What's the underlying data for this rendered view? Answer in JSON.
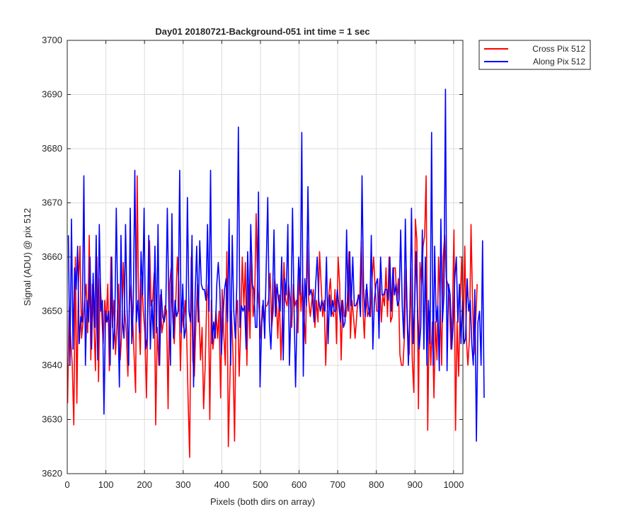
{
  "chart_data": {
    "type": "line",
    "title": "Day01 20180721-Background-051 int time = 1 sec",
    "xlabel": "Pixels (both dirs on array)",
    "ylabel": "Signal (ADU) @ pix 512",
    "xlim": [
      0,
      1024
    ],
    "ylim": [
      3620,
      3700
    ],
    "x_ticks": [
      0,
      100,
      200,
      300,
      400,
      500,
      600,
      700,
      800,
      900,
      1000
    ],
    "y_ticks": [
      3620,
      3630,
      3640,
      3650,
      3660,
      3670,
      3680,
      3690,
      3700
    ],
    "grid": true,
    "legend_position": "outside-top-right",
    "series": [
      {
        "name": "Cross Pix 512",
        "color": "#ff0000",
        "x_start": 1,
        "x_step": 4,
        "values": [
          3633,
          3651,
          3645,
          3640,
          3629,
          3660,
          3633,
          3655,
          3662,
          3645,
          3648,
          3652,
          3655,
          3646,
          3664,
          3641,
          3655,
          3648,
          3639,
          3660,
          3637,
          3656,
          3650,
          3644,
          3652,
          3648,
          3655,
          3639,
          3660,
          3647,
          3652,
          3642,
          3648,
          3655,
          3641,
          3646,
          3659,
          3650,
          3646,
          3638,
          3651,
          3655,
          3649,
          3642,
          3635,
          3675,
          3649,
          3642,
          3656,
          3650,
          3646,
          3634,
          3651,
          3663,
          3651,
          3652,
          3657,
          3629,
          3647,
          3640,
          3653,
          3646,
          3648,
          3651,
          3650,
          3632,
          3655,
          3658,
          3649,
          3644,
          3652,
          3660,
          3655,
          3639,
          3650,
          3647,
          3652,
          3646,
          3633,
          3623,
          3660,
          3641,
          3638,
          3648,
          3655,
          3650,
          3641,
          3647,
          3632,
          3640,
          3652,
          3655,
          3630,
          3652,
          3643,
          3646,
          3650,
          3645,
          3650,
          3634,
          3654,
          3646,
          3640,
          3661,
          3625,
          3637,
          3650,
          3642,
          3626,
          3649,
          3652,
          3638,
          3647,
          3660,
          3651,
          3659,
          3640,
          3655,
          3645,
          3661,
          3649,
          3652,
          3668,
          3654,
          3650,
          3645,
          3651,
          3648,
          3651,
          3651,
          3652,
          3657,
          3647,
          3650,
          3656,
          3653,
          3645,
          3653,
          3641,
          3649,
          3659,
          3652,
          3651,
          3655,
          3652,
          3647,
          3655,
          3651,
          3652,
          3646,
          3658,
          3650,
          3656,
          3649,
          3644,
          3663,
          3652,
          3649,
          3652,
          3654,
          3647,
          3652,
          3648,
          3661,
          3655,
          3649,
          3652,
          3640,
          3650,
          3653,
          3656,
          3650,
          3649,
          3654,
          3644,
          3660,
          3655,
          3641,
          3652,
          3649,
          3649,
          3652,
          3661,
          3645,
          3652,
          3649,
          3645,
          3649,
          3653,
          3652,
          3663,
          3651,
          3645,
          3654,
          3649,
          3650,
          3649,
          3656,
          3660,
          3654,
          3650,
          3650,
          3656,
          3648,
          3653,
          3651,
          3658,
          3649,
          3660,
          3648,
          3649,
          3658,
          3658,
          3652,
          3656,
          3642,
          3640,
          3640,
          3646,
          3658,
          3647,
          3642,
          3658,
          3641,
          3635,
          3667,
          3663,
          3632,
          3659,
          3655,
          3662,
          3664,
          3675,
          3628,
          3650,
          3640,
          3648,
          3634,
          3648,
          3641,
          3660,
          3652,
          3640,
          3660,
          3664,
          3656,
          3655,
          3652,
          3643,
          3650,
          3665,
          3628,
          3648,
          3638,
          3652,
          3660,
          3645,
          3662,
          3645,
          3640,
          3645,
          3666,
          3652,
          3642,
          3648,
          3655
        ]
      },
      {
        "name": "Along Pix 512",
        "color": "#0000ff",
        "x_start": 3,
        "x_step": 4,
        "values": [
          3664,
          3640,
          3667,
          3643,
          3658,
          3654,
          3662,
          3644,
          3649,
          3648,
          3675,
          3640,
          3652,
          3648,
          3660,
          3643,
          3657,
          3647,
          3664,
          3641,
          3666,
          3650,
          3652,
          3631,
          3650,
          3648,
          3650,
          3640,
          3660,
          3643,
          3647,
          3669,
          3650,
          3636,
          3664,
          3648,
          3645,
          3666,
          3650,
          3640,
          3669,
          3644,
          3651,
          3676,
          3648,
          3652,
          3646,
          3661,
          3653,
          3669,
          3643,
          3645,
          3664,
          3643,
          3652,
          3645,
          3662,
          3646,
          3666,
          3640,
          3654,
          3649,
          3648,
          3650,
          3669,
          3651,
          3640,
          3668,
          3645,
          3652,
          3649,
          3650,
          3676,
          3646,
          3655,
          3645,
          3647,
          3671,
          3650,
          3648,
          3664,
          3636,
          3653,
          3662,
          3648,
          3663,
          3655,
          3654,
          3654,
          3652,
          3666,
          3650,
          3676,
          3644,
          3648,
          3645,
          3655,
          3659,
          3654,
          3642,
          3649,
          3654,
          3656,
          3648,
          3667,
          3640,
          3664,
          3650,
          3645,
          3655,
          3684,
          3647,
          3651,
          3650,
          3651,
          3643,
          3661,
          3650,
          3666,
          3655,
          3654,
          3647,
          3647,
          3672,
          3636,
          3647,
          3652,
          3645,
          3658,
          3671,
          3648,
          3643,
          3651,
          3665,
          3649,
          3655,
          3652,
          3650,
          3660,
          3641,
          3656,
          3653,
          3666,
          3640,
          3650,
          3669,
          3651,
          3636,
          3650,
          3660,
          3653,
          3683,
          3638,
          3656,
          3651,
          3673,
          3653,
          3654,
          3652,
          3648,
          3655,
          3660,
          3652,
          3650,
          3652,
          3651,
          3650,
          3660,
          3644,
          3653,
          3649,
          3652,
          3650,
          3650,
          3654,
          3651,
          3648,
          3652,
          3647,
          3648,
          3665,
          3650,
          3661,
          3651,
          3660,
          3651,
          3651,
          3652,
          3653,
          3649,
          3675,
          3654,
          3649,
          3655,
          3651,
          3649,
          3664,
          3643,
          3652,
          3655,
          3656,
          3645,
          3660,
          3653,
          3653,
          3654,
          3654,
          3652,
          3660,
          3650,
          3658,
          3653,
          3655,
          3651,
          3652,
          3665,
          3651,
          3645,
          3667,
          3651,
          3640,
          3650,
          3669,
          3644,
          3651,
          3661,
          3649,
          3643,
          3647,
          3665,
          3643,
          3660,
          3640,
          3652,
          3644,
          3683,
          3640,
          3662,
          3648,
          3651,
          3639,
          3667,
          3648,
          3653,
          3691,
          3639,
          3655,
          3653,
          3643,
          3648,
          3656,
          3660,
          3648,
          3655,
          3644,
          3652,
          3644,
          3645,
          3656,
          3650,
          3652,
          3644,
          3640,
          3654,
          3626,
          3648,
          3650,
          3640,
          3663,
          3634
        ]
      }
    ]
  }
}
